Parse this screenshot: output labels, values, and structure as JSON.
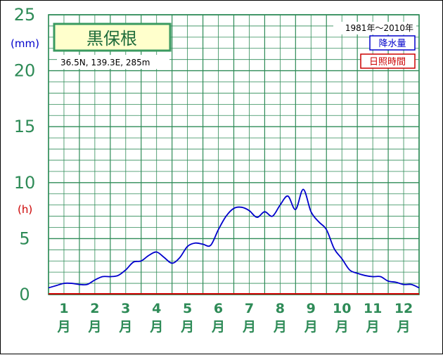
{
  "station": {
    "name": "黒保根",
    "location": "36.5N,  139.3E,  285m",
    "period": "1981年～2010年"
  },
  "legend": {
    "precip_label": "降水量",
    "sunshine_label": "日照時間",
    "precip_color": "#0000cc",
    "sunshine_color": "#cc0000"
  },
  "axes": {
    "precip_unit": "(mm)",
    "sunshine_unit": "(h)",
    "unit_precip_color": "#0000cc",
    "unit_sunshine_color": "#cc0000",
    "y_ticks": [
      "0",
      "5",
      "10",
      "15",
      "20",
      "25"
    ],
    "month_numbers": [
      "1",
      "2",
      "3",
      "4",
      "5",
      "6",
      "7",
      "8",
      "9",
      "10",
      "11",
      "12"
    ],
    "month_suffix": "月"
  },
  "chart_data": {
    "type": "line",
    "title": "黒保根",
    "ylim": [
      0,
      25
    ],
    "xlim": [
      0,
      12
    ],
    "grid": true,
    "x_categories": [
      "1月",
      "2月",
      "3月",
      "4月",
      "5月",
      "6月",
      "7月",
      "8月",
      "9月",
      "10月",
      "11月",
      "12月"
    ],
    "series": [
      {
        "name": "降水量",
        "color": "#0000cc",
        "x": [
          0.0,
          0.25,
          0.5,
          0.75,
          1.0,
          1.25,
          1.5,
          1.75,
          2.0,
          2.25,
          2.5,
          2.75,
          3.0,
          3.25,
          3.5,
          3.75,
          4.0,
          4.25,
          4.5,
          4.75,
          5.0,
          5.25,
          5.5,
          5.75,
          6.0,
          6.25,
          6.5,
          6.75,
          7.0,
          7.25,
          7.5,
          7.75,
          8.0,
          8.25,
          8.5,
          8.75,
          9.0,
          9.25,
          9.5,
          9.75,
          10.0,
          10.25,
          10.5,
          10.75,
          11.0,
          11.25,
          11.5,
          11.75,
          12.0
        ],
        "values": [
          0.6,
          0.8,
          1.0,
          1.0,
          0.9,
          0.9,
          1.3,
          1.6,
          1.6,
          1.7,
          2.2,
          2.9,
          3.0,
          3.5,
          3.8,
          3.3,
          2.8,
          3.3,
          4.3,
          4.6,
          4.5,
          4.4,
          5.8,
          7.0,
          7.7,
          7.8,
          7.5,
          6.9,
          7.4,
          7.0,
          8.0,
          8.8,
          7.6,
          9.4,
          7.4,
          6.5,
          5.8,
          4.1,
          3.2,
          2.2,
          1.9,
          1.7,
          1.6,
          1.6,
          1.2,
          1.1,
          0.9,
          0.9,
          0.6
        ]
      },
      {
        "name": "日照時間",
        "color": "#cc0000",
        "x": [
          0,
          12
        ],
        "values": [
          0.0,
          0.0
        ]
      }
    ]
  }
}
